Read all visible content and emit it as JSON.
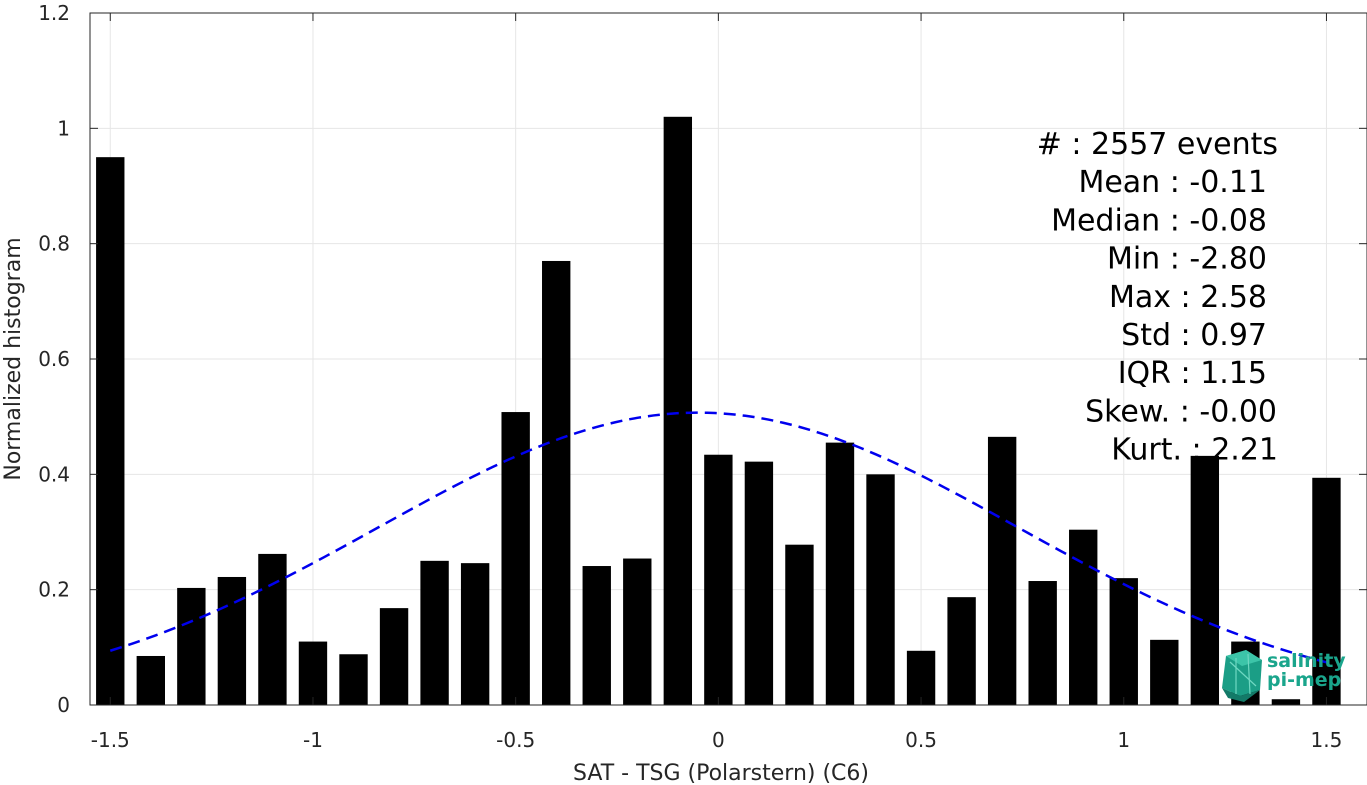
{
  "chart_data": {
    "type": "bar",
    "title": "",
    "xlabel": "SAT - TSG (Polarstern) (C6)",
    "ylabel": "Normalized histogram",
    "xlim": [
      -1.55,
      1.6
    ],
    "ylim": [
      0,
      1.2
    ],
    "xticks": [
      -1.5,
      -1,
      -0.5,
      0,
      0.5,
      1,
      1.5
    ],
    "xtick_labels": [
      "-1.5",
      "-1",
      "-0.5",
      "0",
      "0.5",
      "1",
      "1.5"
    ],
    "yticks": [
      0,
      0.2,
      0.4,
      0.6,
      0.8,
      1,
      1.2
    ],
    "ytick_labels": [
      "0",
      "0.2",
      "0.4",
      "0.6",
      "0.8",
      "1",
      "1.2"
    ],
    "grid": true,
    "bar_color": "#000000",
    "bar_width": 0.07,
    "bars": {
      "x": [
        -1.5,
        -1.4,
        -1.3,
        -1.2,
        -1.1,
        -1.0,
        -0.9,
        -0.8,
        -0.7,
        -0.6,
        -0.5,
        -0.4,
        -0.3,
        -0.2,
        -0.1,
        0.0,
        0.1,
        0.2,
        0.3,
        0.4,
        0.5,
        0.6,
        0.7,
        0.8,
        0.9,
        1.0,
        1.1,
        1.2,
        1.3,
        1.4,
        1.5
      ],
      "values": [
        0.95,
        0.085,
        0.203,
        0.222,
        0.262,
        0.11,
        0.088,
        0.168,
        0.25,
        0.246,
        0.508,
        0.77,
        0.241,
        0.254,
        1.02,
        0.434,
        0.422,
        0.278,
        0.455,
        0.4,
        0.094,
        0.187,
        0.465,
        0.215,
        0.304,
        0.22,
        0.113,
        0.432,
        0.11,
        0.01,
        0.394
      ]
    },
    "fit_curve": {
      "type": "normal-fit",
      "style": "dashed",
      "color": "#0000ee",
      "mean": -0.05,
      "std": 0.79,
      "peak": 0.507,
      "x_range": [
        -1.5,
        1.52
      ]
    },
    "stats_box": {
      "position": "top-right",
      "lines": [
        "#  : 2557 events",
        "Mean : -0.11",
        "Median : -0.08",
        "Min : -2.80",
        "Max : 2.58",
        "Std : 0.97",
        "IQR : 1.15",
        "Skew. : -0.00",
        "Kurt. : 2.21"
      ]
    },
    "logo": {
      "lines": [
        "salinity",
        "pi-mep"
      ],
      "color": "#1aa58c"
    }
  }
}
